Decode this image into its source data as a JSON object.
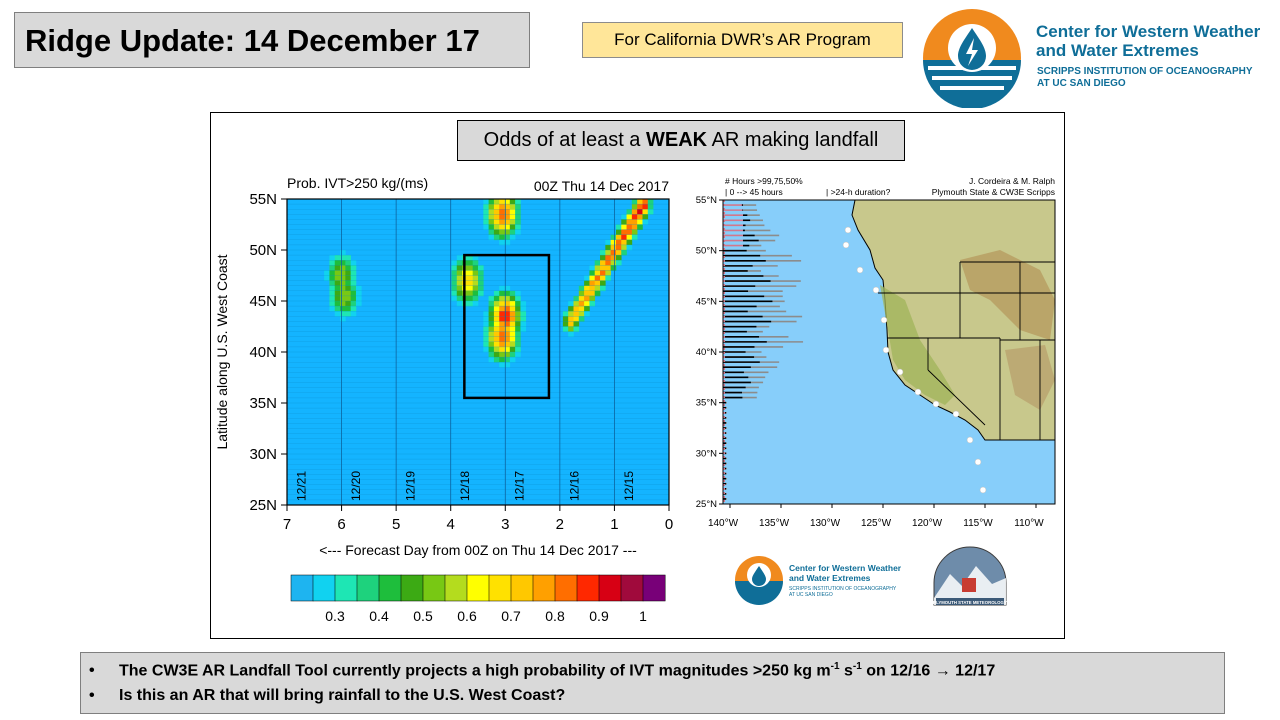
{
  "header": {
    "title": "Ridge Update: 14 December 17",
    "program_label": "For California DWR’s AR Program",
    "logo_line1": "Center for Western Weather",
    "logo_line2": "and Water Extremes",
    "logo_line3": "SCRIPPS INSTITUTION OF OCEANOGRAPHY",
    "logo_line4": "AT UC SAN DIEGO"
  },
  "subtitle": {
    "prefix": "Odds of at least a ",
    "emphasis": "WEAK",
    "suffix": " AR making landfall"
  },
  "chart_data": [
    {
      "type": "heatmap",
      "title": "Prob. IVT>250 kg/(ms)",
      "init_label": "00Z Thu 14 Dec 2017",
      "xlabel": "<--- Forecast Day from 00Z on Thu 14 Dec 2017 ---",
      "ylabel": "Latitude along U.S. West Coast",
      "xlim": [
        7,
        0
      ],
      "ylim": [
        25,
        55
      ],
      "x_ticks": [
        "7",
        "6",
        "5",
        "4",
        "3",
        "2",
        "1",
        "0"
      ],
      "y_ticks": [
        "25N",
        "30N",
        "35N",
        "40N",
        "45N",
        "50N",
        "55N"
      ],
      "date_labels": [
        "12/21",
        "12/20",
        "12/19",
        "12/18",
        "12/17",
        "12/16",
        "12/15"
      ],
      "colorbar_ticks": [
        "0.3",
        "0.4",
        "0.5",
        "0.6",
        "0.7",
        "0.8",
        "0.9",
        "1"
      ],
      "colors": [
        "#1eb4f0",
        "#11d2f0",
        "#1ee6b4",
        "#1ed27d",
        "#1ebe3c",
        "#3caa14",
        "#78c814",
        "#b4dc1e",
        "#ffff00",
        "#ffe100",
        "#ffc800",
        "#ffa000",
        "#ff6e00",
        "#ff2800",
        "#d70014",
        "#a00a3c",
        "#780078"
      ],
      "background_color": "#14b4ff",
      "blobs": [
        {
          "day": 6.0,
          "lat": 47.5,
          "prob": 0.55
        },
        {
          "day": 5.95,
          "lat": 45.5,
          "prob": 0.55
        },
        {
          "day": 3.0,
          "lat": 43.5,
          "prob": 0.9
        },
        {
          "day": 3.05,
          "lat": 41.5,
          "prob": 0.85
        },
        {
          "day": 3.7,
          "lat": 47.0,
          "prob": 0.7
        },
        {
          "day": 3.05,
          "lat": 53.5,
          "prob": 0.85
        }
      ],
      "highlight_box": {
        "day_from": 3.75,
        "day_to": 2.2,
        "lat_from": 35.5,
        "lat_to": 49.5
      }
    },
    {
      "type": "bar",
      "title": "# Hours >99,75,50%",
      "subtitle": "| 0 --> 45 hours",
      "note": "| >24-h duration?",
      "credit1": "J. Cordeira & M. Ralph",
      "credit2": "Plymouth State & CW3E Scripps",
      "x_ticks": [
        "140°W",
        "135°W",
        "130°W",
        "125°W",
        "120°W",
        "115°W",
        "110°W"
      ],
      "y_ticks": [
        "25°N",
        "30°N",
        "35°N",
        "40°N",
        "45°N",
        "50°N",
        "55°N"
      ],
      "ylim": [
        25,
        55
      ],
      "series": [
        {
          "name": ">99%",
          "color": "#000000"
        },
        {
          "name": ">75%",
          "color": "#8c8c8c"
        },
        {
          "name": ">50%",
          "color": "#d2788c"
        }
      ]
    }
  ],
  "footer_logo": {
    "line1": "Center for Western Weather",
    "line2": "and Water Extremes",
    "line3": "SCRIPPS INSTITUTION OF OCEANOGRAPHY",
    "line4": "AT UC SAN DIEGO",
    "psu_label": "PLYMOUTH STATE METEOROLOGY"
  },
  "bullets": {
    "item1_text": "The CW3E AR Landfall Tool currently projects a high probability of IVT magnitudes >250 kg m",
    "item1_sup1": "-1",
    "item1_mid": " s",
    "item1_sup2": "-1",
    "item1_end": " on 12/16 → 12/17",
    "item2_text": "Is this an AR that will bring rainfall to the U.S. West Coast?"
  }
}
